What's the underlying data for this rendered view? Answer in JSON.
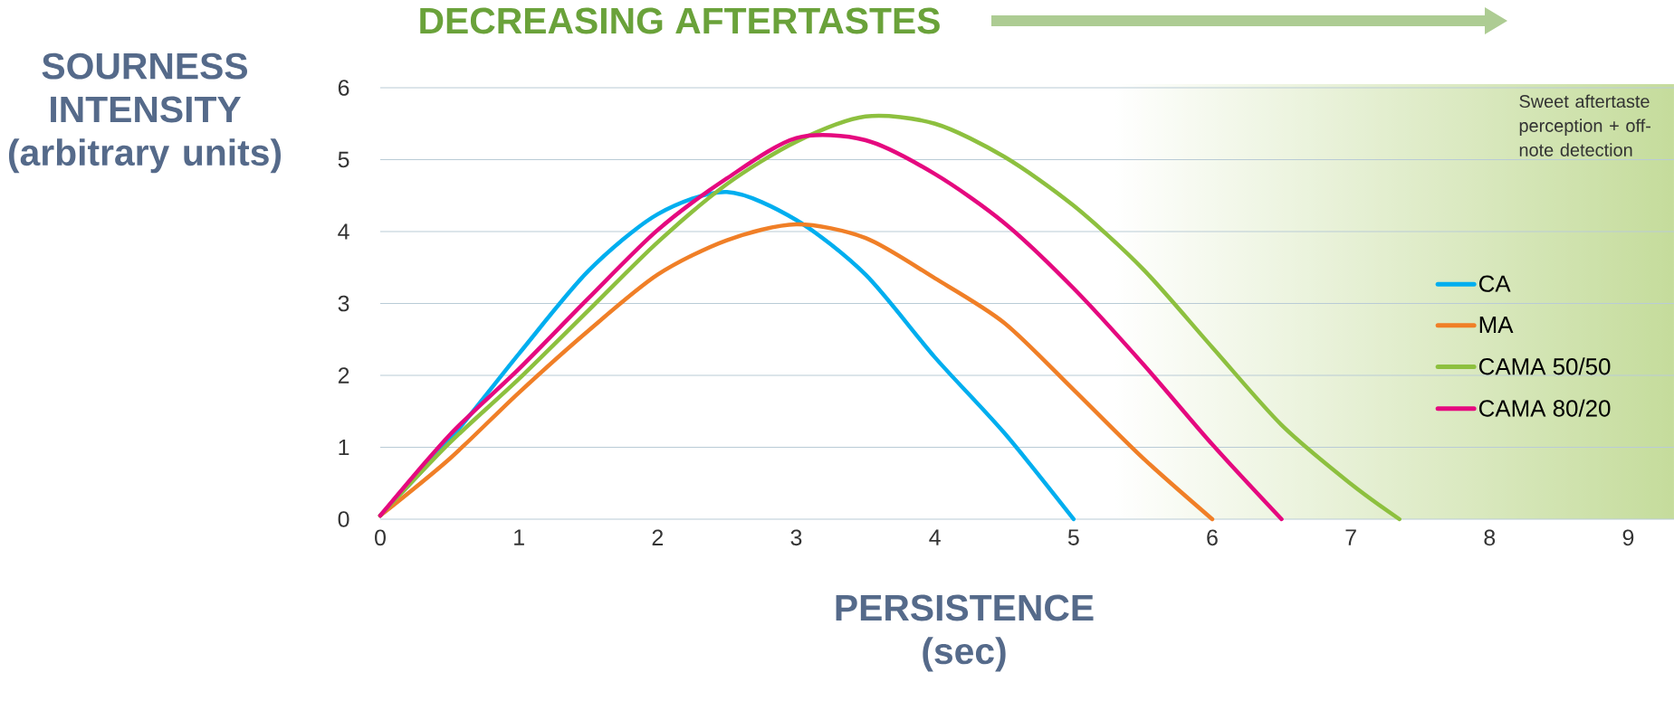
{
  "chart_data": {
    "type": "line",
    "title": "DECREASING AFTERTASTES",
    "xlabel": "PERSISTENCE (sec)",
    "ylabel": "SOURNESS INTENSITY (arbitrary units)",
    "series": [
      {
        "name": "CA",
        "color": "#00aeef",
        "x": [
          0,
          0.5,
          1,
          1.5,
          2,
          2.5,
          3,
          3.5,
          4,
          4.5,
          5.0
        ],
        "values": [
          0.05,
          1.1,
          2.3,
          3.45,
          4.24,
          4.55,
          4.16,
          3.4,
          2.25,
          1.2,
          0
        ]
      },
      {
        "name": "MA",
        "color": "#f07f27",
        "x": [
          0,
          0.5,
          1,
          1.5,
          2,
          2.5,
          3,
          3.5,
          4,
          4.5,
          5,
          5.5,
          6.0
        ],
        "values": [
          0.05,
          0.84,
          1.76,
          2.62,
          3.4,
          3.88,
          4.1,
          3.91,
          3.35,
          2.73,
          1.8,
          0.85,
          0
        ]
      },
      {
        "name": "CAMA 50/50",
        "color": "#8dc03f",
        "x": [
          0,
          0.5,
          1,
          1.5,
          2,
          2.5,
          3,
          3.5,
          4,
          4.5,
          5,
          5.5,
          6,
          6.5,
          7,
          7.35
        ],
        "values": [
          0.05,
          1.06,
          1.95,
          2.9,
          3.85,
          4.66,
          5.25,
          5.6,
          5.5,
          5.04,
          4.36,
          3.48,
          2.39,
          1.31,
          0.49,
          0
        ]
      },
      {
        "name": "CAMA 80/20",
        "color": "#e5097f",
        "x": [
          0,
          0.5,
          1,
          1.5,
          2,
          2.5,
          3,
          3.5,
          4,
          4.5,
          5,
          5.5,
          6,
          6.5
        ],
        "values": [
          0.05,
          1.17,
          2.09,
          3.07,
          4.02,
          4.74,
          5.3,
          5.27,
          4.8,
          4.12,
          3.21,
          2.16,
          1.04,
          0
        ]
      }
    ],
    "xlim": [
      0,
      9.33
    ],
    "ylim": [
      0,
      6
    ],
    "xticks": [
      0,
      1,
      2,
      3,
      4,
      5,
      6,
      7,
      8,
      9
    ],
    "yticks": [
      0,
      1,
      2,
      3,
      4,
      5,
      6
    ],
    "bands": [
      {
        "axis": "x",
        "from": 5.3,
        "to": 9.33,
        "label": "Sweet aftertaste perception + off-note detection",
        "color": "#c5dc9c"
      }
    ],
    "grid": "y",
    "legend": "right",
    "line_style": "solid",
    "marker": "none"
  }
}
